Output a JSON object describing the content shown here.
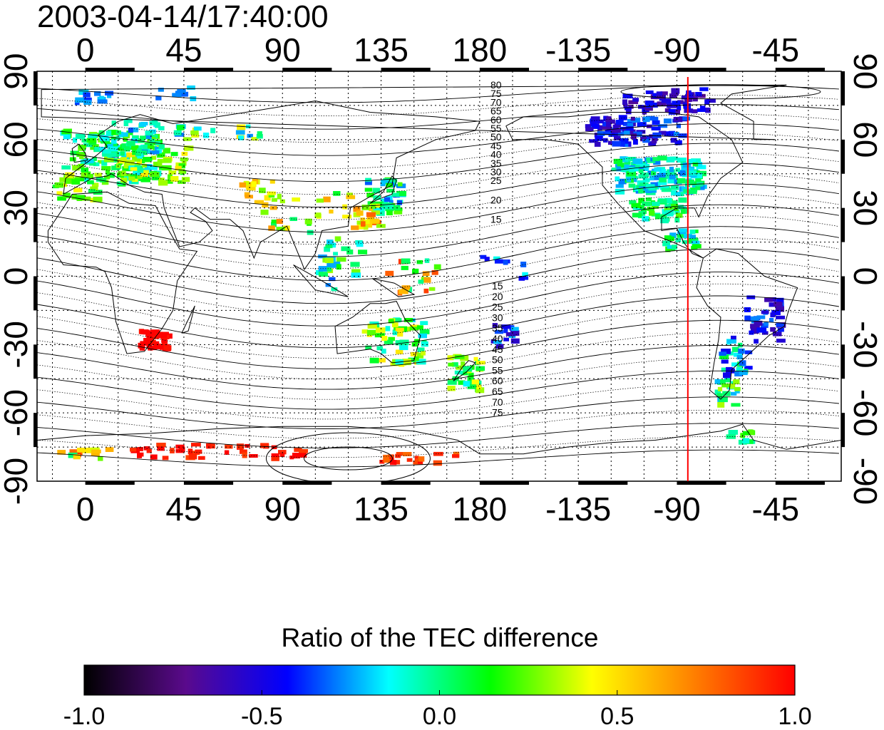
{
  "title": "2003-04-14/17:40:00",
  "map": {
    "x_ticks": [
      "0",
      "45",
      "90",
      "135",
      "180",
      "-135",
      "-90",
      "-45"
    ],
    "y_ticks": [
      "90",
      "60",
      "30",
      "0",
      "-30",
      "-60",
      "-90"
    ],
    "x_tick_lons": [
      0,
      45,
      90,
      135,
      180,
      225,
      270,
      315
    ],
    "y_tick_lats": [
      90,
      60,
      30,
      0,
      -30,
      -60,
      -90
    ],
    "lon_range": [
      -22,
      345
    ],
    "lat_range": [
      -90,
      90
    ],
    "marker_line_lon": -85,
    "marker_line_color": "#ff0000",
    "north_contour_labels": [
      "80",
      "75",
      "70",
      "65",
      "60",
      "55",
      "50",
      "45",
      "40",
      "35",
      "30",
      "25",
      "20",
      "15"
    ],
    "south_contour_labels": [
      "15",
      "20",
      "25",
      "30",
      "35",
      "40",
      "45",
      "50",
      "55",
      "60",
      "65",
      "70",
      "75"
    ]
  },
  "colorbar": {
    "title": "Ratio of the TEC difference",
    "labels": [
      "-1.0",
      "-0.5",
      "0.0",
      "0.5",
      "1.0"
    ],
    "range": [
      -1,
      1
    ],
    "stops": [
      "#000000",
      "#5a0a8c",
      "#0000ff",
      "#00ffff",
      "#00ff00",
      "#ffff00",
      "#ff8000",
      "#ff0000"
    ]
  }
}
